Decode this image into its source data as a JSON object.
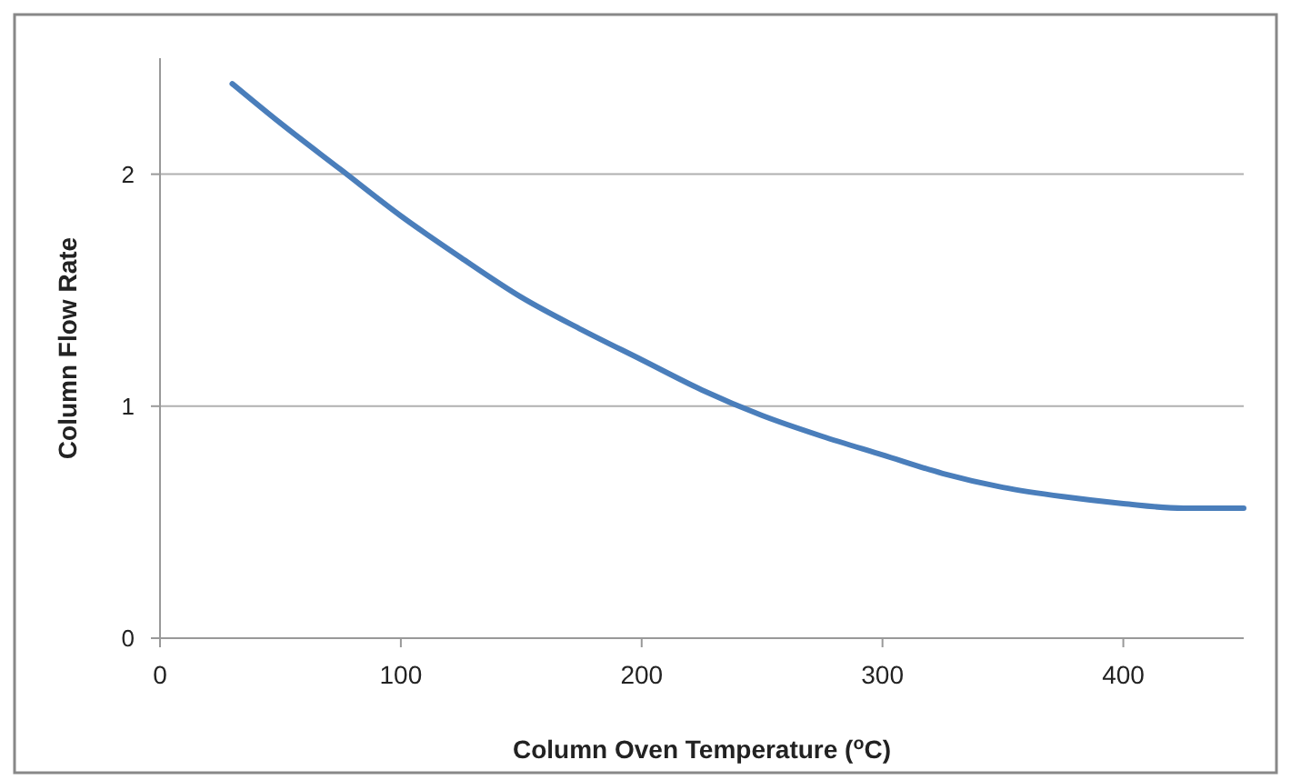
{
  "chart_data": {
    "type": "line",
    "xlabel": "Column Oven Temperature ($^{o}$C)",
    "ylabel": "Column Flow Rate",
    "x": [
      30,
      50,
      75,
      100,
      125,
      150,
      175,
      200,
      225,
      250,
      275,
      300,
      325,
      350,
      375,
      400,
      425,
      450
    ],
    "series": [
      {
        "color": "#4a7ebb",
        "values": [
          2.39,
          2.22,
          2.02,
          1.82,
          1.64,
          1.47,
          1.33,
          1.2,
          1.07,
          0.96,
          0.87,
          0.79,
          0.71,
          0.65,
          0.61,
          0.58,
          0.56,
          0.56
        ]
      }
    ],
    "xlim": [
      0,
      450
    ],
    "xticks": [
      0,
      100,
      200,
      300,
      400
    ],
    "ylim": [
      0,
      2.5
    ],
    "yticks": [
      0,
      1,
      2
    ],
    "grid": "y",
    "marker": "none",
    "line_style": "solid"
  }
}
